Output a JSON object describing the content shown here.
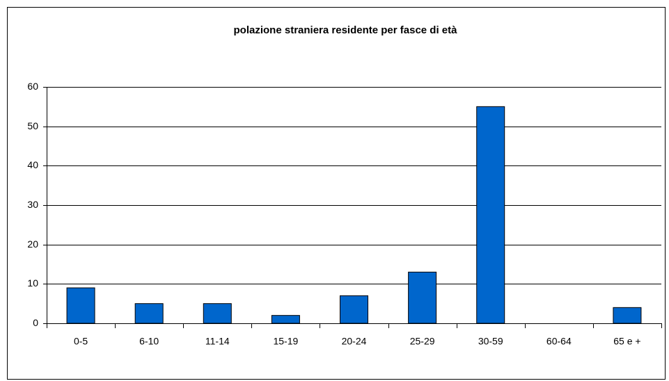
{
  "chart_data": {
    "type": "bar",
    "title": "polazione straniera residente per fasce di età",
    "categories": [
      "0-5",
      "6-10",
      "11-14",
      "15-19",
      "20-24",
      "25-29",
      "30-59",
      "60-64",
      "65 e +"
    ],
    "values": [
      9,
      5,
      5,
      2,
      7,
      13,
      55,
      0,
      4
    ],
    "color": "#0066cc",
    "ylim": [
      0,
      60
    ],
    "yticks": [
      0,
      10,
      20,
      30,
      40,
      50,
      60
    ],
    "grid": true
  }
}
